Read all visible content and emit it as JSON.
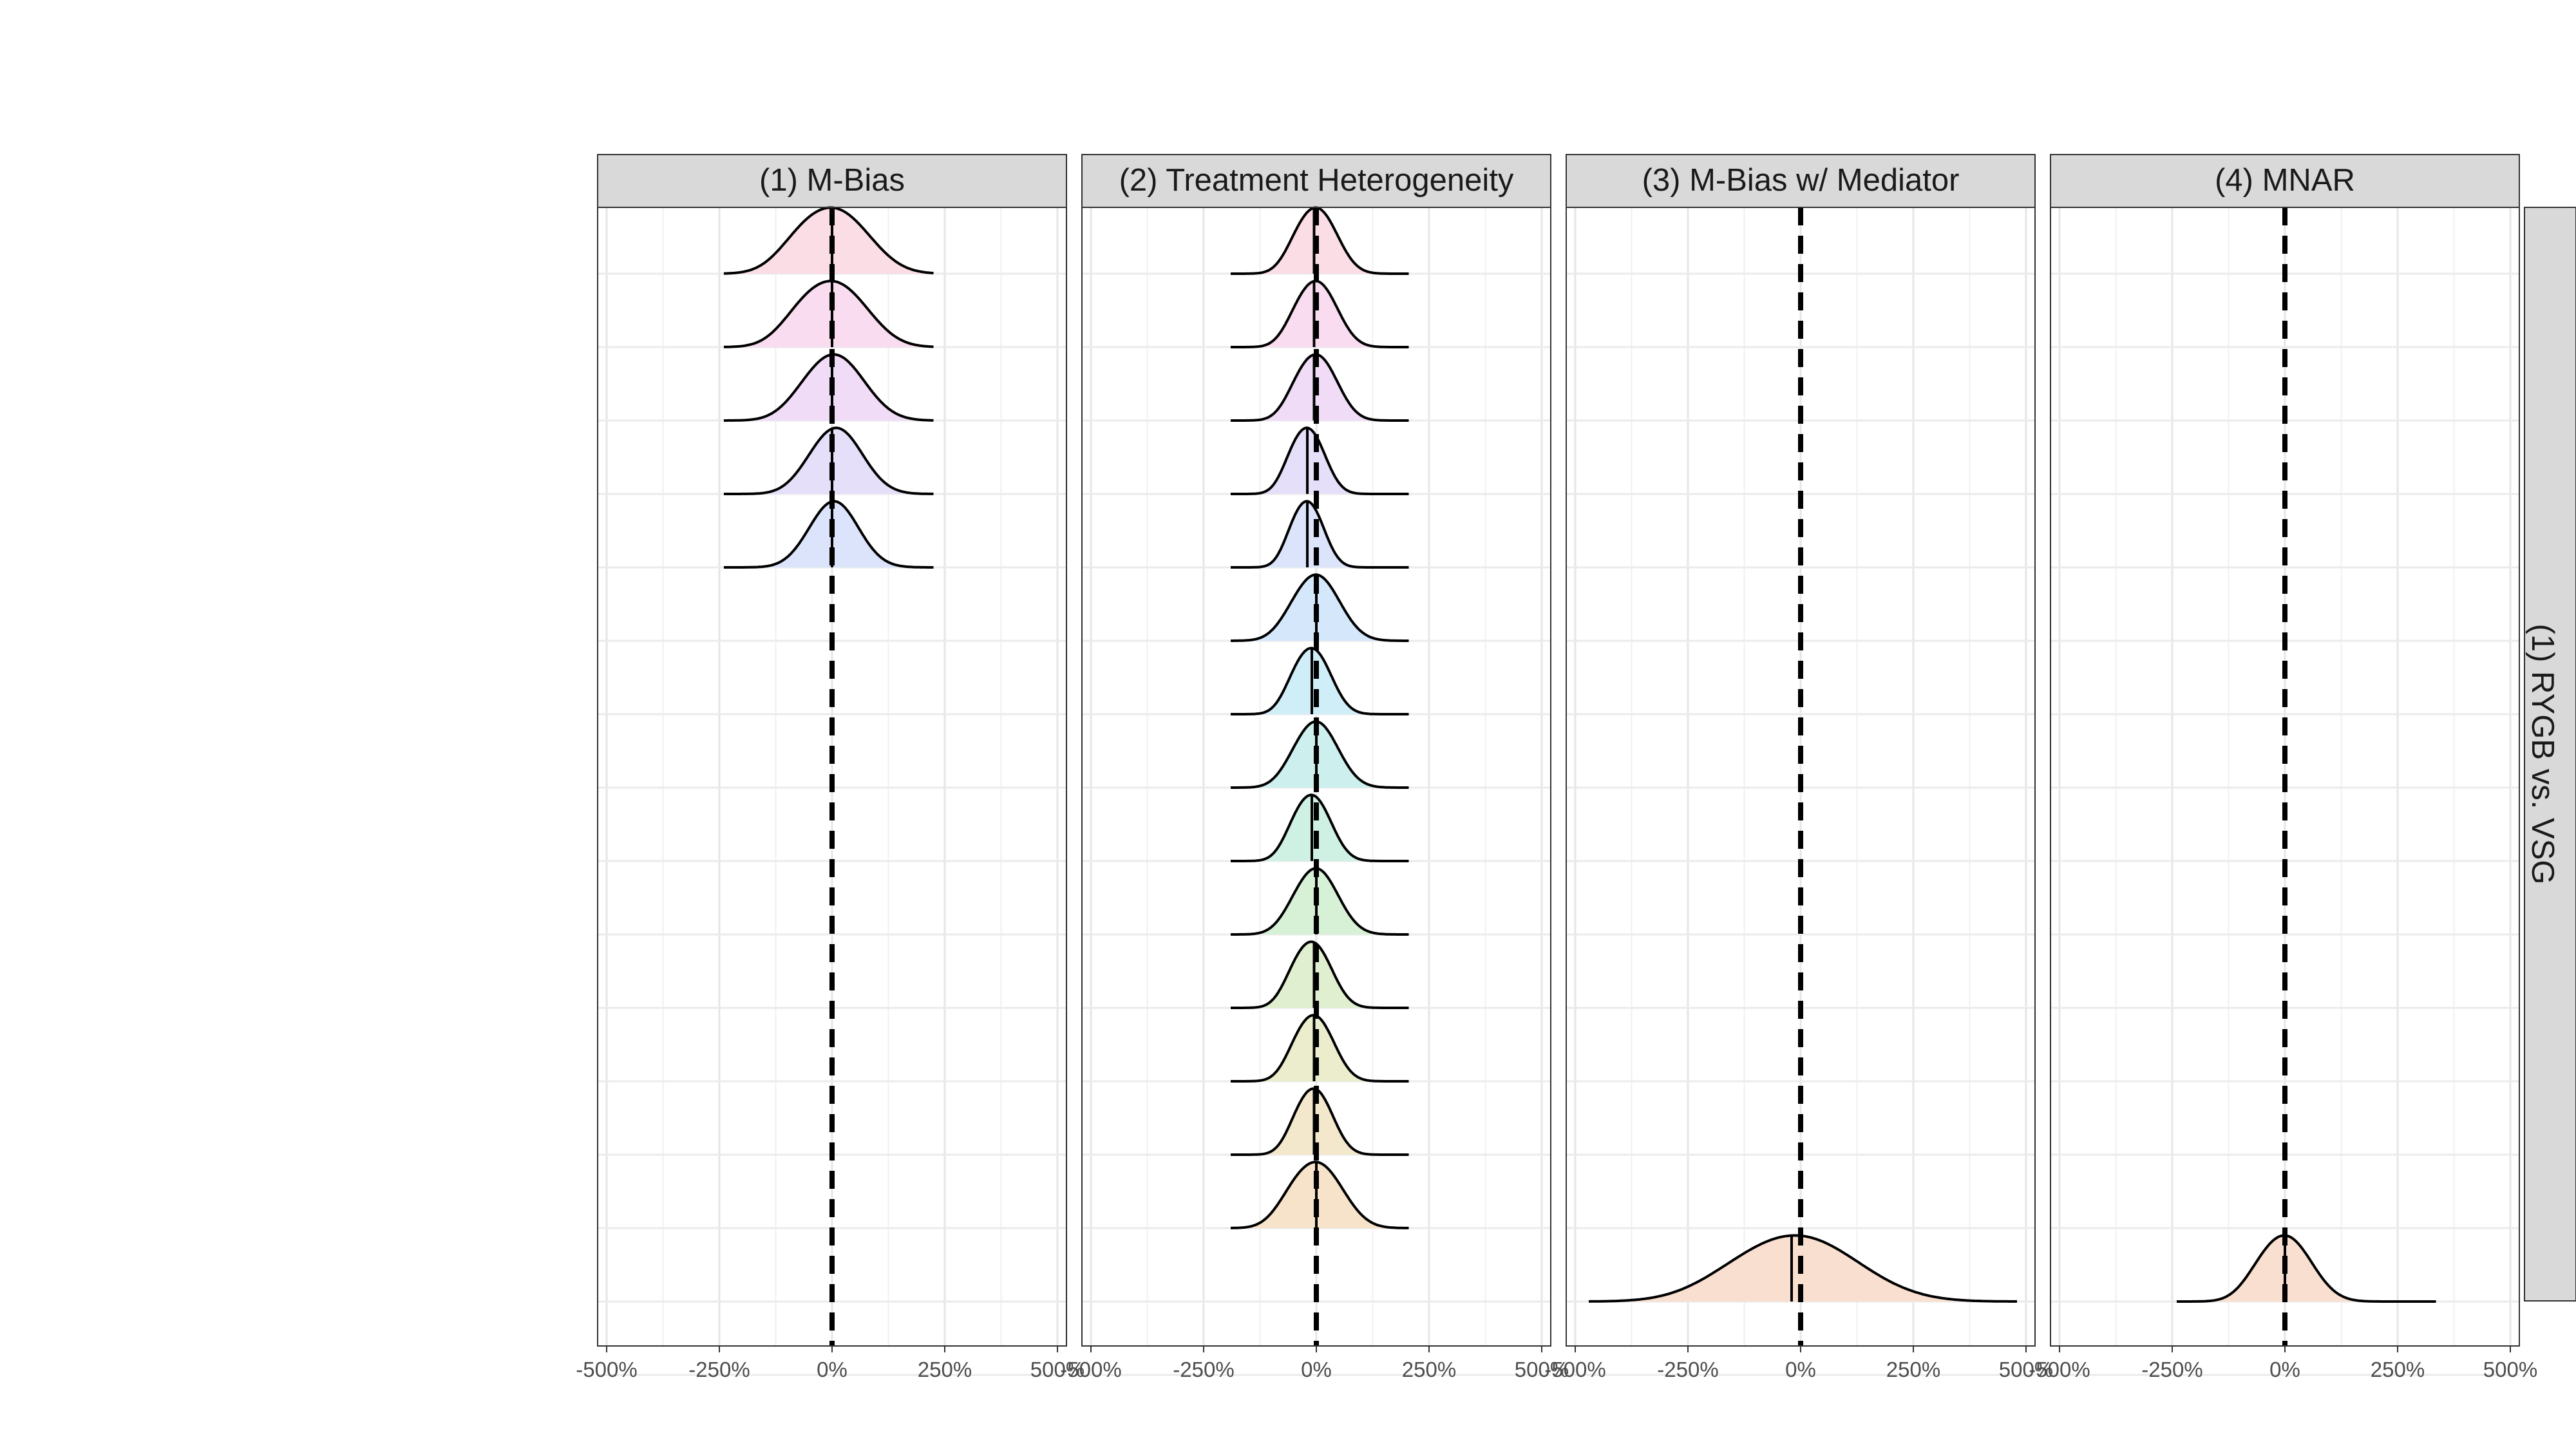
{
  "chart_data": {
    "type": "ridgeline-density",
    "facet_columns": [
      "(1) M-Bias",
      "(2) Treatment Heterogeneity",
      "(3) M-Bias w/ Mediator",
      "(4) MNAR"
    ],
    "facet_row": "(1) RYGB vs. VSG",
    "x_ticks": [
      -500,
      -250,
      0,
      250,
      500
    ],
    "x_tick_labels": [
      "-500%",
      "-250%",
      "0%",
      "250%",
      "500%"
    ],
    "xlim": [
      -520,
      520
    ],
    "row_count": 16,
    "reference_line": {
      "x": 0,
      "style": "dashed"
    },
    "grid": true,
    "legend": "none",
    "row_colors": [
      "#fbdde6",
      "#f9dcef",
      "#f0dcf7",
      "#e6dffa",
      "#dbe4fb",
      "#d5e8fb",
      "#d0eef8",
      "#cdf0ef",
      "#cff1e4",
      "#d7f1d6",
      "#e0efcf",
      "#ebedcd",
      "#f3e8cb",
      "#f7e3c9",
      "#f9dfcf",
      "#fbdcd9"
    ],
    "panels": [
      {
        "ridges": [
          {
            "row": 1,
            "center": 0,
            "min": -240,
            "max": 225,
            "mean": 0,
            "spread": 65,
            "shoulder": 0.35
          },
          {
            "row": 2,
            "center": 0,
            "min": -240,
            "max": 225,
            "mean": 0,
            "spread": 62,
            "shoulder": 0.35
          },
          {
            "row": 3,
            "center": 5,
            "min": -240,
            "max": 225,
            "mean": 0,
            "spread": 58,
            "shoulder": 0.2
          },
          {
            "row": 4,
            "center": 10,
            "min": -240,
            "max": 225,
            "mean": 0,
            "spread": 52,
            "shoulder": 0.15
          },
          {
            "row": 5,
            "center": 5,
            "min": -240,
            "max": 225,
            "mean": 0,
            "spread": 50,
            "shoulder": 0.1
          }
        ]
      },
      {
        "ridges": [
          {
            "row": 1,
            "center": 0,
            "min": -190,
            "max": 205,
            "mean": -5,
            "spread": 38,
            "shoulder": 0.3
          },
          {
            "row": 2,
            "center": 0,
            "min": -190,
            "max": 205,
            "mean": -5,
            "spread": 38,
            "shoulder": 0.3
          },
          {
            "row": 3,
            "center": 0,
            "min": -190,
            "max": 205,
            "mean": -5,
            "spread": 38,
            "shoulder": 0.3
          },
          {
            "row": 4,
            "center": -20,
            "min": -190,
            "max": 205,
            "mean": -20,
            "spread": 32,
            "shoulder": 0.3
          },
          {
            "row": 5,
            "center": -20,
            "min": -190,
            "max": 205,
            "mean": -20,
            "spread": 30,
            "shoulder": 0.3
          },
          {
            "row": 6,
            "center": 0,
            "min": -190,
            "max": 205,
            "mean": 0,
            "spread": 45,
            "shoulder": 0.2
          },
          {
            "row": 7,
            "center": -10,
            "min": -190,
            "max": 205,
            "mean": -10,
            "spread": 35,
            "shoulder": 0.3
          },
          {
            "row": 8,
            "center": 0,
            "min": -190,
            "max": 205,
            "mean": 0,
            "spread": 42,
            "shoulder": 0.2
          },
          {
            "row": 9,
            "center": -10,
            "min": -190,
            "max": 205,
            "mean": -10,
            "spread": 35,
            "shoulder": 0.3
          },
          {
            "row": 10,
            "center": 0,
            "min": -190,
            "max": 205,
            "mean": 0,
            "spread": 42,
            "shoulder": 0.2
          },
          {
            "row": 11,
            "center": -10,
            "min": -190,
            "max": 205,
            "mean": -5,
            "spread": 36,
            "shoulder": 0.3
          },
          {
            "row": 12,
            "center": -5,
            "min": -190,
            "max": 205,
            "mean": -5,
            "spread": 36,
            "shoulder": 0.3
          },
          {
            "row": 13,
            "center": -5,
            "min": -190,
            "max": 205,
            "mean": -5,
            "spread": 34,
            "shoulder": 0.3
          },
          {
            "row": 14,
            "center": 0,
            "min": -190,
            "max": 205,
            "mean": 0,
            "spread": 48,
            "shoulder": 0.3
          }
        ]
      },
      {
        "ridges": [
          {
            "row": 15,
            "center": -10,
            "min": -470,
            "max": 480,
            "mean": -20,
            "spread": 120,
            "shoulder": 0.2
          }
        ]
      },
      {
        "ridges": [
          {
            "row": 15,
            "center": 0,
            "min": -240,
            "max": 335,
            "mean": 0,
            "spread": 50,
            "shoulder": 0.25
          }
        ]
      }
    ]
  }
}
